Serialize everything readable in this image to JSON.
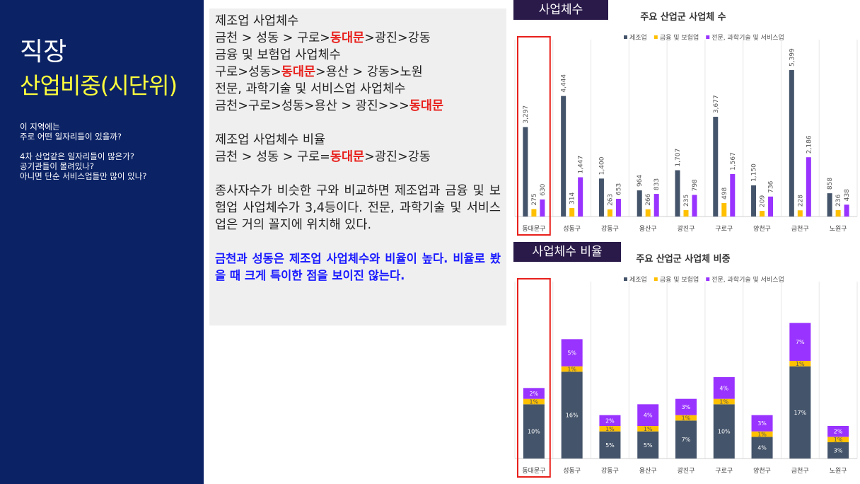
{
  "sidebar": {
    "title": "직장",
    "subtitle": "산업비중(시단위)",
    "notes": [
      [
        "이 지역에는",
        "주로 어떤 일자리들이 있을까?"
      ],
      [
        "4차 산업같은 일자리들이 많은가?",
        "공기관들이 몰려있나?",
        "아니면 단순 서비스업들만 많이 있나?"
      ]
    ]
  },
  "panel": {
    "blocks": [
      [
        [
          "제조업 사업체수"
        ],
        [
          "금천 > 성동 > 구로>",
          {
            "text": "동대문",
            "color": "#e8201c"
          },
          ">광진>강동"
        ],
        [
          "금융 및 보험업 사업체수"
        ],
        [
          "구로>성동>",
          {
            "text": "동대문",
            "color": "#e8201c"
          },
          ">용산 > 강동>노원"
        ],
        [
          "전문, 과학기술 및 서비스업 사업체수"
        ],
        [
          "금천>구로>성동>용산 > 광진>>>",
          {
            "text": "동대문",
            "color": "#e8201c"
          }
        ]
      ],
      [
        [
          "제조업 사업체수 비율"
        ],
        [
          "금천 > 성동 > 구로=",
          {
            "text": "동대문",
            "color": "#e8201c"
          },
          ">광진>강동"
        ]
      ]
    ],
    "paragraph": "종사자수가 비슷한 구와 비교하면 제조업과 금융 및 보험업 사업체수가 3,4등이다. 전문, 과학기술 및 서비스업은 거의 꼴지에 위치해 있다.",
    "conclusion": "금천과 성동은 제조업 사업체수와 비율이 높다. 비율로 봤을 때 크게 특이한 점을 보이진 않는다."
  },
  "chart_data": [
    {
      "type": "bar",
      "label": "사업체수",
      "title": "주요 산업군 사업체 수",
      "categories": [
        "동대문구",
        "성동구",
        "강동구",
        "용산구",
        "광진구",
        "구로구",
        "양천구",
        "금천구",
        "노원구"
      ],
      "series": [
        {
          "name": "제조업",
          "color": "#44546a",
          "values": [
            3297,
            4444,
            1400,
            964,
            1707,
            3677,
            1150,
            5399,
            858
          ],
          "value_labels": [
            "3,297",
            "4,444",
            "1,400",
            "964",
            "1,707",
            "3,677",
            "1,150",
            "5,399",
            "858"
          ]
        },
        {
          "name": "금융 및 보험업",
          "color": "#ffc000",
          "values": [
            275,
            314,
            263,
            266,
            235,
            498,
            209,
            228,
            236
          ]
        },
        {
          "name": "전문, 과학기술 및 서비스업",
          "color": "#9933ff",
          "values": [
            630,
            1447,
            653,
            833,
            798,
            1567,
            736,
            2186,
            438
          ],
          "value_labels": [
            "630",
            "1,447",
            "653",
            "833",
            "798",
            "1,567",
            "736",
            "2,186",
            "438"
          ]
        }
      ],
      "ylim": [
        0,
        6000
      ],
      "grid": true
    },
    {
      "type": "stacked_bar",
      "label": "사업체수 비율",
      "title": "주요 산업군 사업체 비중",
      "categories": [
        "동대문구",
        "성동구",
        "강동구",
        "용산구",
        "광진구",
        "구로구",
        "양천구",
        "금천구",
        "노원구"
      ],
      "series": [
        {
          "name": "제조업",
          "color": "#44546a",
          "values": [
            10,
            16,
            5,
            5,
            7,
            10,
            4,
            17,
            3
          ],
          "value_labels": [
            "10%",
            "16%",
            "5%",
            "5%",
            "7%",
            "10%",
            "4%",
            "17%",
            "3%"
          ]
        },
        {
          "name": "금융 및 보험업",
          "color": "#ffc000",
          "values": [
            1,
            1,
            1,
            1,
            1,
            1,
            1,
            1,
            1
          ],
          "value_labels": [
            "1%",
            "1%",
            "1%",
            "1%",
            "1%",
            "1%",
            "1%",
            "1%",
            "1%"
          ]
        },
        {
          "name": "전문, 과학기술 및 서비스업",
          "color": "#9933ff",
          "values": [
            2,
            5,
            2,
            4,
            3,
            4,
            3,
            7,
            2
          ],
          "value_labels": [
            "2%",
            "5%",
            "2%",
            "4%",
            "3%",
            "4%",
            "3%",
            "7%",
            "2%"
          ]
        }
      ],
      "ylim": [
        0,
        30
      ],
      "grid": true
    }
  ]
}
